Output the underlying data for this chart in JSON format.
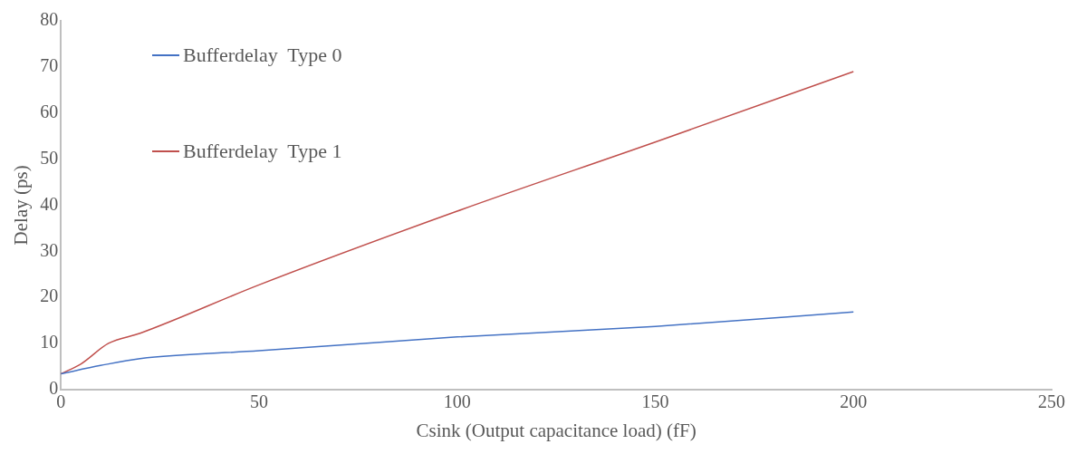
{
  "chart_data": {
    "type": "line",
    "xlabel": "Csink (Output capacitance load) (fF)",
    "ylabel": "Delay (ps)",
    "xlim": [
      0,
      250
    ],
    "xticks": [
      0,
      50,
      100,
      150,
      200,
      250
    ],
    "ylim": [
      0,
      80
    ],
    "yticks": [
      0,
      10,
      20,
      30,
      40,
      50,
      60,
      70,
      80
    ],
    "grid": false,
    "legend": "top left",
    "marker": "none",
    "line_style": "solid",
    "series": [
      {
        "name": "Bufferdelay  Type 0",
        "color": "#4472c4",
        "x": [
          0,
          10,
          20,
          50,
          100,
          150,
          200
        ],
        "values": [
          3.4,
          5.2,
          6.7,
          8.4,
          11.4,
          13.7,
          16.8
        ]
      },
      {
        "name": "Bufferdelay  Type 1",
        "color": "#c0504d",
        "x": [
          0,
          5,
          12,
          20,
          50,
          100,
          150,
          200
        ],
        "values": [
          3.4,
          5.5,
          10,
          12.2,
          22.7,
          38.7,
          53.7,
          69
        ]
      }
    ]
  }
}
